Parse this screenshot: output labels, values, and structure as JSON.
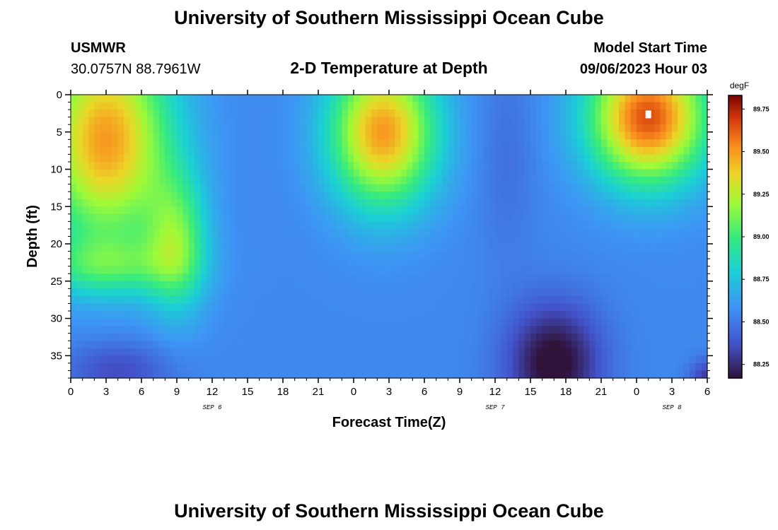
{
  "header": {
    "title": "University of Southern Mississippi Ocean Cube",
    "station": "USMWR",
    "coords": "30.0757N  88.7961W",
    "subtitle": "2-D Temperature at Depth",
    "model_start_label": "Model Start Time",
    "model_start_value": "09/06/2023 Hour 03"
  },
  "footer": {
    "title": "University of Southern Mississippi Ocean Cube"
  },
  "chart_data": {
    "type": "heatmap",
    "xlabel": "Forecast Time(Z)",
    "ylabel": "Depth (ft)",
    "x_tick_labels": [
      "0",
      "3",
      "6",
      "9",
      "12",
      "15",
      "18",
      "21",
      "0",
      "3",
      "6",
      "9",
      "12",
      "15",
      "18",
      "21",
      "0",
      "3",
      "6"
    ],
    "x_range_hours": [
      0,
      54
    ],
    "date_labels": [
      {
        "text": "SEP 6",
        "hour": 12
      },
      {
        "text": "SEP 7",
        "hour": 36
      },
      {
        "text": "SEP 8",
        "hour": 51
      }
    ],
    "y_ticks": [
      0,
      5,
      10,
      15,
      20,
      25,
      30,
      35
    ],
    "y_range": [
      0,
      38
    ],
    "y_inverted": true,
    "colorbar": {
      "unit": "degF",
      "ticks": [
        "89.75",
        "89.50",
        "89.25",
        "89.00",
        "88.75",
        "88.50",
        "88.25"
      ],
      "tick_values": [
        89.75,
        89.5,
        89.25,
        89.0,
        88.75,
        88.5,
        88.25
      ],
      "range": [
        88.17,
        89.83
      ]
    },
    "features": [
      {
        "region": "hours 0-10, depth 0-20",
        "value": 89.45
      },
      {
        "region": "hours 0-5, depth 33-38",
        "value": 88.38
      },
      {
        "region": "hours 21-32, depth 0-15",
        "value": 89.45
      },
      {
        "region": "hours 36-41, depth 0-15",
        "value": 88.5
      },
      {
        "region": "hours 38-44, depth 25-38",
        "value": 88.2
      },
      {
        "region": "hours 44-54, depth 0-10",
        "value": 89.62
      },
      {
        "region": "hour 49, depth 3",
        "value": 89.82
      }
    ]
  }
}
